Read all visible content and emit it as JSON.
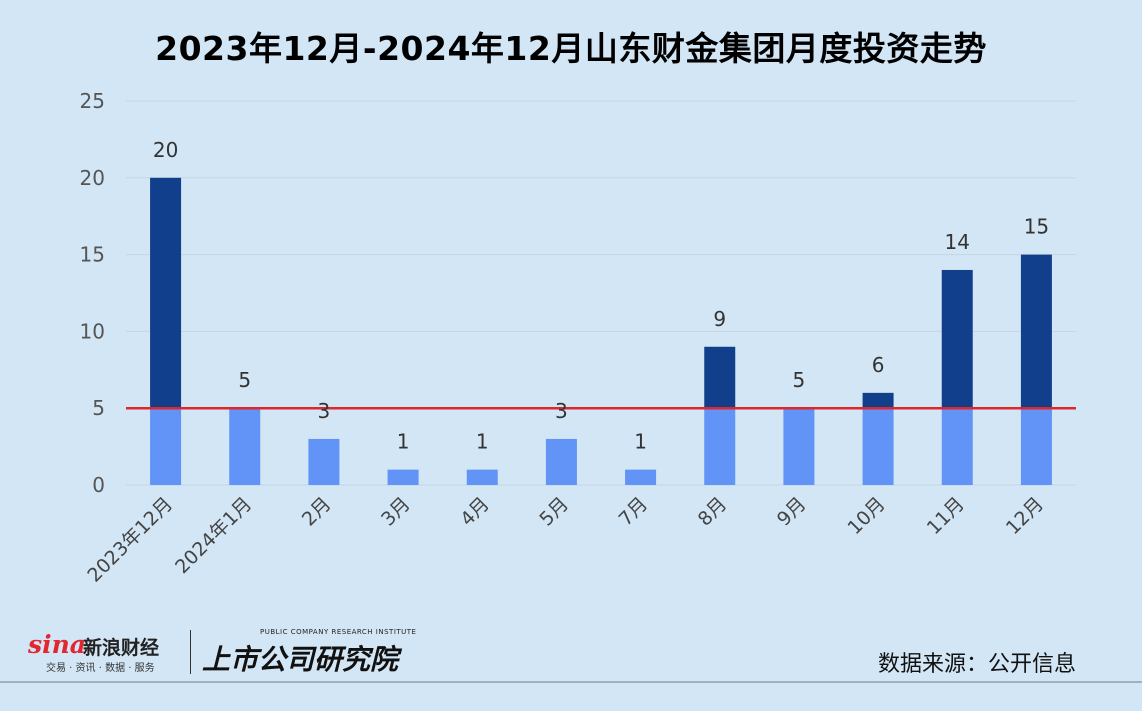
{
  "chart_data": {
    "type": "bar",
    "title": "2023年12月-2024年12月山东财金集团月度投资走势",
    "categories": [
      "2023年12月",
      "2024年1月",
      "2月",
      "3月",
      "4月",
      "5月",
      "7月",
      "8月",
      "9月",
      "10月",
      "11月",
      "12月"
    ],
    "values": [
      20,
      5,
      3,
      1,
      1,
      3,
      1,
      9,
      5,
      6,
      14,
      15
    ],
    "data_labels": [
      "20",
      "5",
      "3",
      "1",
      "1",
      "3",
      "1",
      "9",
      "5",
      "6",
      "14",
      "15"
    ],
    "yticks": [
      "0",
      "5",
      "10",
      "15",
      "20",
      "25"
    ],
    "ylim": [
      0,
      25
    ],
    "reference_line": 5,
    "legend": "none",
    "grid": true,
    "colors": {
      "above_reference": "#123f8c",
      "below_reference": "#6293f6",
      "reference_line": "#e0262a",
      "grid": "#c4d6e4"
    }
  },
  "footer": {
    "sina_mark": "sina",
    "sina_name": "新浪财经",
    "sina_sub": "交易 · 资讯 · 数据 · 服务",
    "research_en": "PUBLIC COMPANY RESEARCH INSTITUTE",
    "research_cn": "上市公司研究院",
    "source": "数据来源：公开信息"
  }
}
